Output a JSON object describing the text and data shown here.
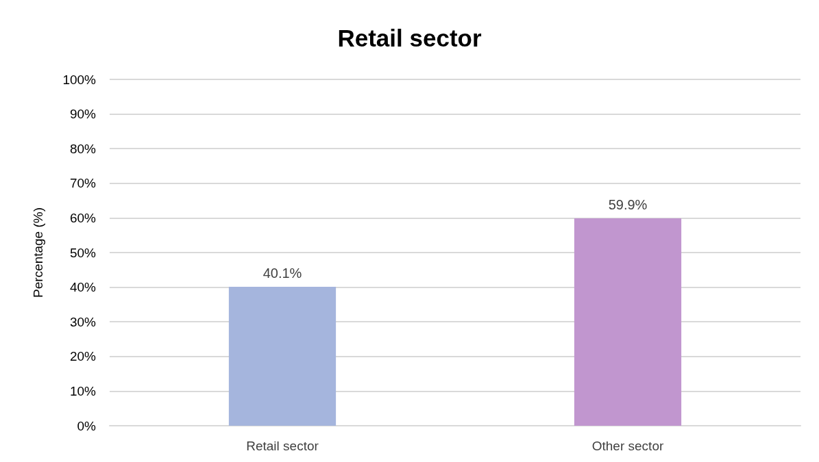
{
  "chart_data": {
    "type": "bar",
    "title": "Retail sector",
    "ylabel": "Percentage (%)",
    "categories": [
      "Retail sector",
      "Other sector"
    ],
    "values": [
      40.1,
      59.9
    ],
    "colors": [
      "#a5b5dd",
      "#c196cf"
    ],
    "value_labels": [
      "40.1%",
      "59.9%"
    ],
    "ylim": [
      0,
      100
    ],
    "yticks": [
      {
        "value": 0,
        "label": "0%"
      },
      {
        "value": 10,
        "label": "10%"
      },
      {
        "value": 20,
        "label": "20%"
      },
      {
        "value": 30,
        "label": "30%"
      },
      {
        "value": 40,
        "label": "40%"
      },
      {
        "value": 50,
        "label": "50%"
      },
      {
        "value": 60,
        "label": "60%"
      },
      {
        "value": 70,
        "label": "70%"
      },
      {
        "value": 80,
        "label": "80%"
      },
      {
        "value": 90,
        "label": "90%"
      },
      {
        "value": 100,
        "label": "100%"
      }
    ],
    "grid": "y"
  }
}
